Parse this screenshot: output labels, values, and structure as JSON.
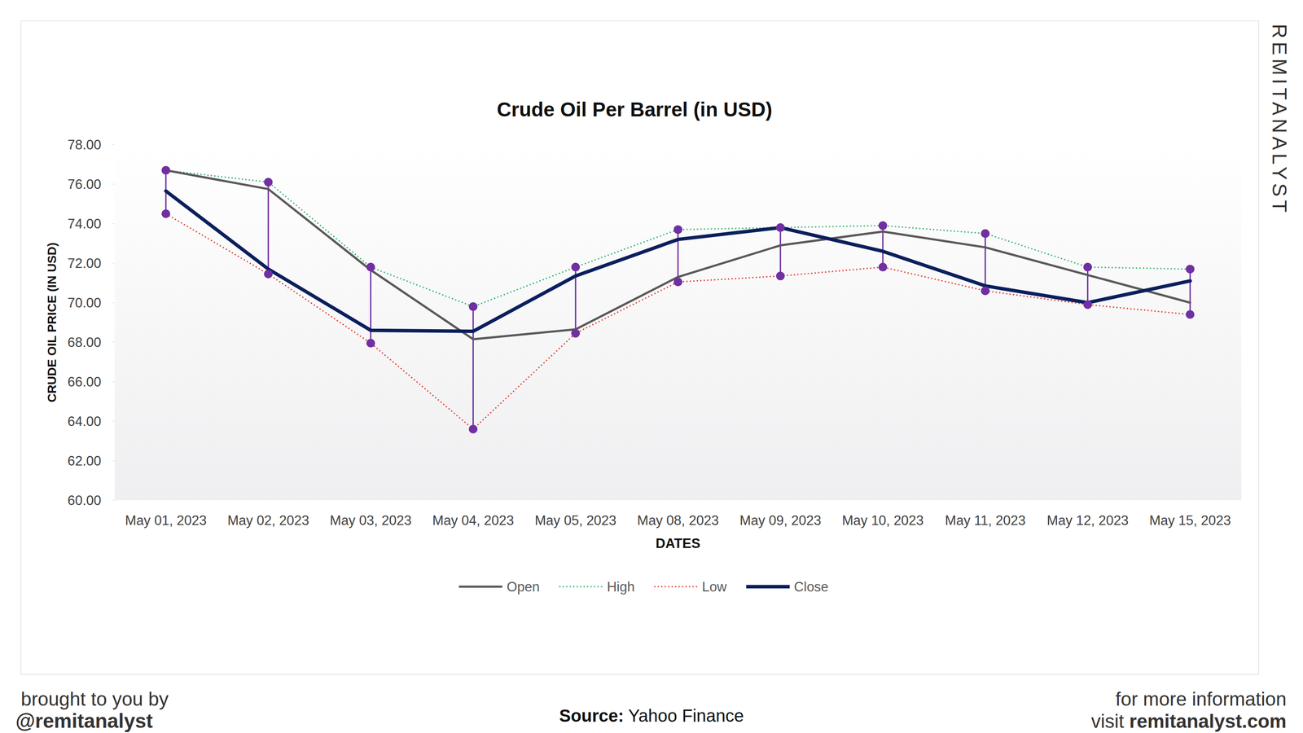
{
  "chart_data": {
    "type": "line",
    "title": "Crude Oil Per Barrel (in USD)",
    "x_label": "DATES",
    "y_label": "CRUDE OIL PRICE (IN USD)",
    "categories": [
      "May 01, 2023",
      "May 02, 2023",
      "May 03, 2023",
      "May 04, 2023",
      "May 05, 2023",
      "May 08, 2023",
      "May 09, 2023",
      "May 10, 2023",
      "May 11, 2023",
      "May 12, 2023",
      "May 15, 2023"
    ],
    "series": [
      {
        "name": "Open",
        "color": "#595959",
        "line_style": "solid",
        "values": [
          76.7,
          75.75,
          71.65,
          68.15,
          68.65,
          71.3,
          72.9,
          73.6,
          72.8,
          71.4,
          70.0
        ]
      },
      {
        "name": "High",
        "color": "#3cb371",
        "line_style": "dotted",
        "marker": "circle",
        "values": [
          76.7,
          76.1,
          71.8,
          69.8,
          71.8,
          73.7,
          73.8,
          73.9,
          73.5,
          71.8,
          71.7
        ]
      },
      {
        "name": "Low",
        "color": "#e0443a",
        "line_style": "dotted",
        "marker": "circle",
        "values": [
          74.5,
          71.45,
          67.95,
          63.6,
          68.45,
          71.05,
          71.35,
          71.8,
          70.6,
          69.9,
          69.4
        ]
      },
      {
        "name": "Close",
        "color": "#0b1f5c",
        "line_style": "solid",
        "values": [
          75.65,
          71.7,
          68.6,
          68.55,
          71.35,
          73.2,
          73.8,
          72.6,
          70.85,
          70.0,
          71.1
        ]
      }
    ],
    "ylim": [
      60,
      78
    ],
    "yticks": [
      {
        "value": 60,
        "label": "60.00"
      },
      {
        "value": 62,
        "label": "62.00"
      },
      {
        "value": 64,
        "label": "64.00"
      },
      {
        "value": 66,
        "label": "66.00"
      },
      {
        "value": 68,
        "label": "68.00"
      },
      {
        "value": 70,
        "label": "70.00"
      },
      {
        "value": 72,
        "label": "72.00"
      },
      {
        "value": 74,
        "label": "74.00"
      },
      {
        "value": 76,
        "label": "76.00"
      },
      {
        "value": 78,
        "label": "78.00"
      }
    ],
    "grid": false,
    "legend": "bottom"
  },
  "watermark": "REMITANALYST",
  "footer": {
    "brought_by": "brought to you by",
    "handle": "@remitanalyst",
    "source_label": "Source:",
    "source": "Yahoo Finance",
    "more_info": "for more information",
    "visit": "visit",
    "website": "remitanalyst.com"
  }
}
